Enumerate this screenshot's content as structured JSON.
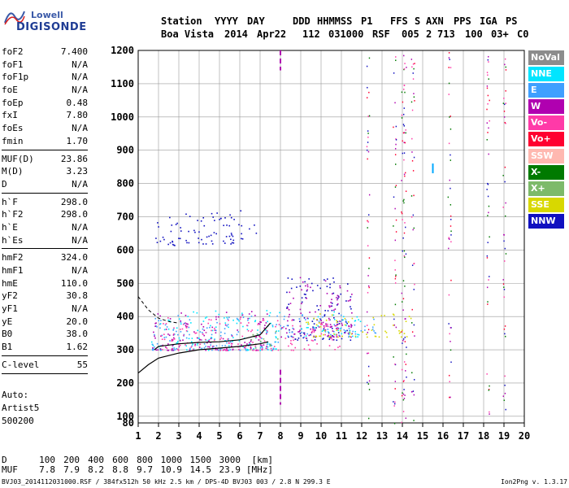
{
  "logo": {
    "line1": "Lowell",
    "line2": "DIGISONDE"
  },
  "header": {
    "labels": [
      "Station",
      "YYYY",
      "DAY",
      "DDD",
      "HHMMSS",
      "P1",
      "FFS",
      "S",
      "AXN",
      "PPS",
      "IGA",
      "PS"
    ],
    "values": [
      "Boa Vista",
      "2014",
      "Apr22",
      "112",
      "031000",
      "RSF",
      "005",
      "2",
      "713",
      "100",
      "03+",
      "C0"
    ]
  },
  "parameters": [
    {
      "name": "foF2",
      "value": "7.400"
    },
    {
      "name": "foF1",
      "value": "N/A"
    },
    {
      "name": "foF1p",
      "value": "N/A"
    },
    {
      "name": "foE",
      "value": "N/A"
    },
    {
      "name": "foEp",
      "value": "0.48"
    },
    {
      "name": "fxI",
      "value": "7.80"
    },
    {
      "name": "foEs",
      "value": "N/A"
    },
    {
      "name": "fmin",
      "value": "1.70",
      "sep_after": true
    },
    {
      "name": "MUF(D)",
      "value": "23.86"
    },
    {
      "name": "M(D)",
      "value": "3.23"
    },
    {
      "name": "D",
      "value": "N/A",
      "sep_after": true
    },
    {
      "name": "h`F",
      "value": "298.0"
    },
    {
      "name": "h`F2",
      "value": "298.0"
    },
    {
      "name": "h`E",
      "value": "N/A"
    },
    {
      "name": "h`Es",
      "value": "N/A",
      "sep_after": true
    },
    {
      "name": "hmF2",
      "value": "324.0"
    },
    {
      "name": "hmF1",
      "value": "N/A"
    },
    {
      "name": "hmE",
      "value": "110.0"
    },
    {
      "name": "yF2",
      "value": "30.8"
    },
    {
      "name": "yF1",
      "value": "N/A"
    },
    {
      "name": "yE",
      "value": "20.0"
    },
    {
      "name": "B0",
      "value": "38.0"
    },
    {
      "name": "B1",
      "value": "1.62",
      "sep_after": true
    },
    {
      "name": "C-level",
      "value": "55",
      "sep_after": true
    }
  ],
  "auto": {
    "line1": "Auto:",
    "line2": "Artist5",
    "line3": "500200"
  },
  "legend": [
    {
      "label": "NoVal",
      "color": "#8c8c8c"
    },
    {
      "label": "NNE",
      "color": "#00e5ff"
    },
    {
      "label": "E",
      "color": "#3fa0ff"
    },
    {
      "label": "W",
      "color": "#b000b0"
    },
    {
      "label": "Vo-",
      "color": "#ff3aa8"
    },
    {
      "label": "Vo+",
      "color": "#ff0030"
    },
    {
      "label": "SSW",
      "color": "#ffb8b0"
    },
    {
      "label": "X-",
      "color": "#007a00"
    },
    {
      "label": "X+",
      "color": "#7dba6a"
    },
    {
      "label": "SSE",
      "color": "#d8d800"
    },
    {
      "label": "NNW",
      "color": "#1010c0"
    }
  ],
  "chart_data": {
    "type": "scatter",
    "xlabel": "",
    "ylabel": "",
    "xlim": [
      1,
      20
    ],
    "ylim": [
      80,
      1200
    ],
    "x_ticks": [
      1,
      2,
      3,
      4,
      5,
      6,
      7,
      8,
      9,
      10,
      11,
      12,
      13,
      14,
      15,
      16,
      17,
      18,
      19,
      20
    ],
    "y_ticks": [
      100,
      200,
      300,
      400,
      500,
      600,
      700,
      800,
      900,
      1000,
      1100,
      1200
    ],
    "y_tick_extra": [
      80
    ],
    "grid": true,
    "series": [
      {
        "name": "NNW",
        "color": "#1010c0",
        "clusters": [
          [
            1.7,
            3.0,
            610,
            700
          ],
          [
            3.0,
            6.8,
            620,
            720
          ],
          [
            8.2,
            11.5,
            330,
            520
          ]
        ]
      },
      {
        "name": "NNE",
        "color": "#00e5ff",
        "clusters": [
          [
            1.6,
            8.0,
            300,
            420
          ],
          [
            9.0,
            12.0,
            340,
            420
          ]
        ]
      },
      {
        "name": "E",
        "color": "#3fa0ff",
        "clusters": [
          [
            1.6,
            8.0,
            300,
            410
          ],
          [
            8.0,
            13.0,
            340,
            410
          ]
        ]
      },
      {
        "name": "W",
        "color": "#b000b0",
        "clusters": [
          [
            1.6,
            7.5,
            300,
            420
          ],
          [
            8.0,
            11.5,
            340,
            520
          ]
        ]
      },
      {
        "name": "SSE",
        "color": "#d8d800",
        "clusters": [
          [
            9.0,
            14.5,
            340,
            410
          ]
        ]
      },
      {
        "name": "Vo-",
        "color": "#ff3aa8",
        "clusters": [
          [
            2.0,
            11.0,
            300,
            400
          ]
        ]
      },
      {
        "name": "X+",
        "color": "#7dba6a",
        "clusters": [
          [
            6.5,
            8.0,
            300,
            360
          ]
        ]
      }
    ],
    "profile_x": [
      1.0,
      1.5,
      2.0,
      3.0,
      4.0,
      5.0,
      6.0,
      7.0,
      7.4
    ],
    "profile_y": [
      230,
      255,
      275,
      290,
      300,
      305,
      310,
      318,
      324
    ]
  },
  "bottom": {
    "d_label": "D",
    "d_values": [
      "100",
      "200",
      "400",
      "600",
      "800",
      "1000",
      "1500",
      "3000"
    ],
    "d_unit": "[km]",
    "muf_label": "MUF",
    "muf_values": [
      "7.8",
      "7.9",
      "8.2",
      "8.8",
      "9.7",
      "10.9",
      "14.5",
      "23.9"
    ],
    "muf_unit": "[MHz]"
  },
  "footer": {
    "left": "BVJ03_2014112031000.RSF / 384fx512h 50 kHz 2.5 km / DPS-4D BVJ03 003 / 2.8 N 299.3 E",
    "right": "Ion2Png v. 1.3.17"
  }
}
